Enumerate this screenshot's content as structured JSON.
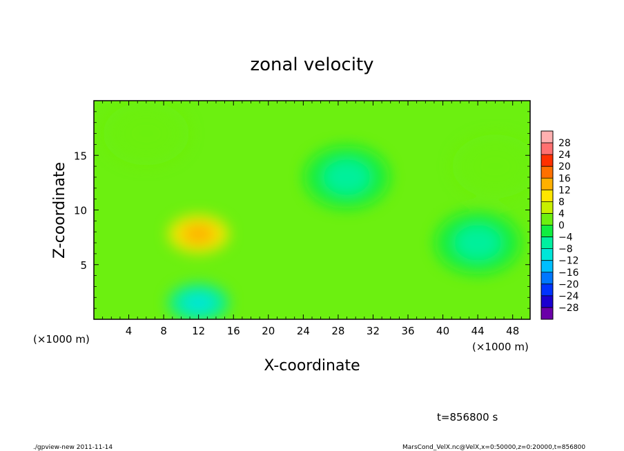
{
  "chart_data": {
    "type": "heatmap",
    "title": "zonal velocity",
    "xlabel": "X-coordinate",
    "ylabel": "Z-coordinate",
    "x_unit_left": "(×1000 m)",
    "x_unit_right": "(×1000 m)",
    "xlim": [
      0,
      50
    ],
    "ylim": [
      0,
      20
    ],
    "x_ticks": [
      4,
      8,
      12,
      16,
      20,
      24,
      28,
      32,
      36,
      40,
      44,
      48
    ],
    "y_ticks": [
      5,
      10,
      15
    ],
    "x_tick_labels": [
      "4",
      "8",
      "12",
      "16",
      "20",
      "24",
      "28",
      "32",
      "36",
      "40",
      "44",
      "48"
    ],
    "y_tick_labels": [
      "5",
      "10",
      "15"
    ],
    "colorbar": {
      "levels": [
        -28,
        -24,
        -20,
        -16,
        -12,
        -8,
        -4,
        0,
        4,
        8,
        12,
        16,
        20,
        24,
        28
      ],
      "labels": [
        "28",
        "24",
        "20",
        "16",
        "12",
        "8",
        "4",
        "0",
        "−4",
        "−8",
        "−12",
        "−16",
        "−20",
        "−24",
        "−28"
      ],
      "colors": [
        "#6a00a8",
        "#1a00d0",
        "#0033ff",
        "#0077ff",
        "#00bfff",
        "#00e6d8",
        "#00f0a0",
        "#10ee40",
        "#6cf010",
        "#c8f000",
        "#ffe600",
        "#ffb000",
        "#ff7000",
        "#ff3000",
        "#ff7070",
        "#ffb0b0"
      ]
    },
    "features": [
      {
        "x": 12,
        "y": 7.8,
        "value": 14
      },
      {
        "x": 12,
        "y": 1.5,
        "value": -11
      },
      {
        "x": 29,
        "y": 13,
        "value": -6
      },
      {
        "x": 44,
        "y": 7,
        "value": -6
      },
      {
        "x": 46,
        "y": 14,
        "value": 3
      },
      {
        "x": 6,
        "y": 17,
        "value": 2
      }
    ],
    "background_value": 1
  },
  "annotations": {
    "time": "t=856800 s",
    "footer_left": "./gpview-new   2011-11-14",
    "footer_right": "MarsCond_VelX.nc@VelX,x=0:50000,z=0:20000,t=856800"
  }
}
